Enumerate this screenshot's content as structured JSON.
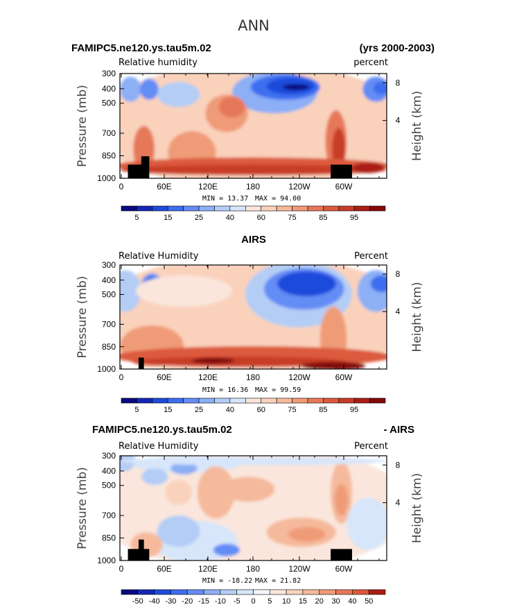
{
  "page": {
    "title": "ANN"
  },
  "chart_data": [
    {
      "type": "heatmap",
      "title": "FAMIPC5.ne120.ys.tau5m.02",
      "subtitle_right": "(yrs 2000-2003)",
      "variable_label": "Relative humidity",
      "units_label": "percent",
      "ylabel": "Pressure (mb)",
      "ylabel_right": "Height (km)",
      "x_ticks": [
        "0",
        "60E",
        "120E",
        "180",
        "120W",
        "60W"
      ],
      "y_ticks": [
        "300",
        "400",
        "500",
        "700",
        "850",
        "1000"
      ],
      "y_right_ticks": [
        "8",
        "4"
      ],
      "stats": {
        "min": "13.37",
        "max": "94.00"
      },
      "stats_labels": {
        "min": "MIN =",
        "max": "MAX ="
      },
      "colorbar": {
        "labels": [
          "5",
          "15",
          "25",
          "40",
          "60",
          "75",
          "85",
          "95"
        ],
        "colors": [
          "#0a0a80",
          "#1428b4",
          "#1e4bdc",
          "#3c6ef0",
          "#648cf5",
          "#8caff5",
          "#b4cdf5",
          "#d7e6fa",
          "#fae6dc",
          "#fad2bc",
          "#f5b99b",
          "#f09b78",
          "#e6785a",
          "#dc5a3c",
          "#c83c28",
          "#aa1e14",
          "#820a0a"
        ]
      }
    },
    {
      "type": "heatmap",
      "title": "AIRS",
      "variable_label": "Relative Humidity",
      "units_label": "Percent",
      "ylabel": "Pressure (mb)",
      "ylabel_right": "Height (km)",
      "x_ticks": [
        "0",
        "60E",
        "120E",
        "180",
        "120W",
        "60W"
      ],
      "y_ticks": [
        "300",
        "400",
        "500",
        "700",
        "850",
        "1000"
      ],
      "y_right_ticks": [
        "8",
        "4"
      ],
      "stats": {
        "min": "16.36",
        "max": "99.59"
      },
      "stats_labels": {
        "min": "MIN =",
        "max": "MAX ="
      },
      "colorbar": {
        "labels": [
          "5",
          "15",
          "25",
          "40",
          "60",
          "75",
          "85",
          "95"
        ],
        "colors": [
          "#0a0a80",
          "#1428b4",
          "#1e4bdc",
          "#3c6ef0",
          "#648cf5",
          "#8caff5",
          "#b4cdf5",
          "#d7e6fa",
          "#fae6dc",
          "#fad2bc",
          "#f5b99b",
          "#f09b78",
          "#e6785a",
          "#dc5a3c",
          "#c83c28",
          "#aa1e14",
          "#820a0a"
        ]
      }
    },
    {
      "type": "heatmap",
      "title": "FAMIPC5.ne120.ys.tau5m.02",
      "subtitle_right": "- AIRS",
      "variable_label": "Relative Humidity",
      "units_label": "Percent",
      "ylabel": "Pressure (mb)",
      "ylabel_right": "Height (km)",
      "x_ticks": [
        "0",
        "60E",
        "120E",
        "180",
        "120W",
        "60W"
      ],
      "y_ticks": [
        "300",
        "400",
        "500",
        "700",
        "850",
        "1000"
      ],
      "y_right_ticks": [
        "8",
        "4"
      ],
      "stats": {
        "min": "-18.22",
        "max": "21.82"
      },
      "stats_labels": {
        "min": "MIN =",
        "max": "MAX ="
      },
      "colorbar": {
        "labels": [
          "-50",
          "-40",
          "-30",
          "-20",
          "-15",
          "-10",
          "-5",
          "0",
          "5",
          "10",
          "15",
          "20",
          "30",
          "40",
          "50"
        ],
        "colors": [
          "#0a0a80",
          "#1428b4",
          "#1e4bdc",
          "#3c6ef0",
          "#648cf5",
          "#8caff5",
          "#b4cdf5",
          "#d7e6fa",
          "#f5f5ff",
          "#fae6dc",
          "#fad2bc",
          "#f5b99b",
          "#f09b78",
          "#e6785a",
          "#dc5a3c",
          "#aa1e14"
        ]
      }
    }
  ]
}
